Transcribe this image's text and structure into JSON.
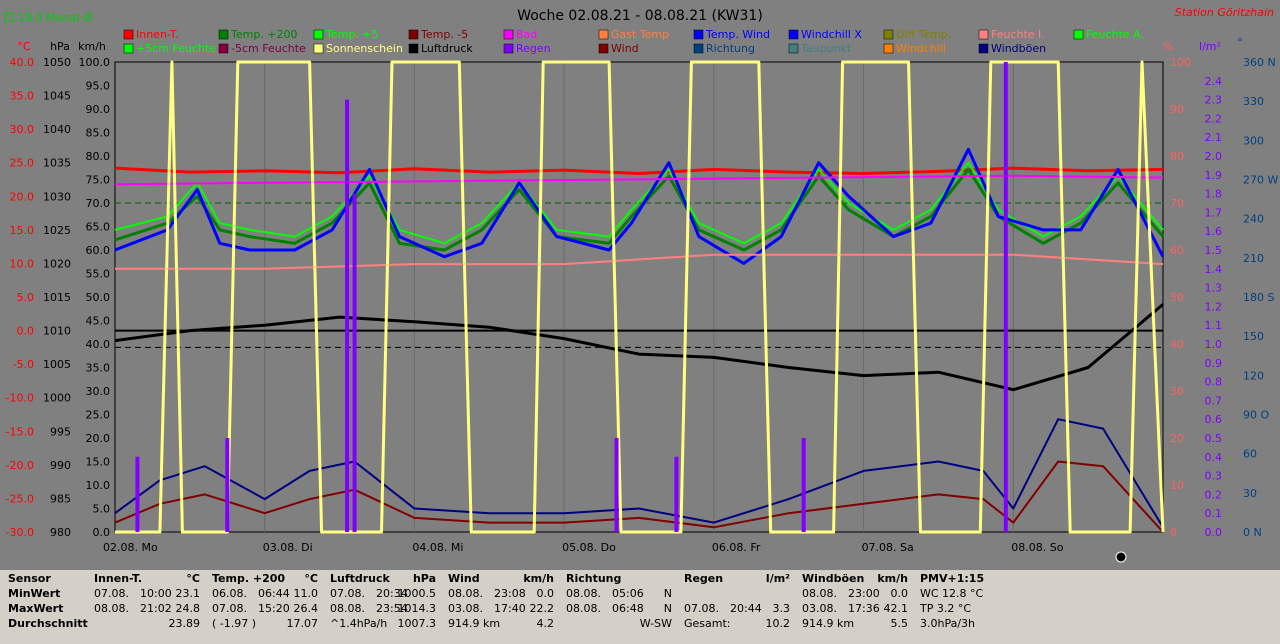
{
  "header": {
    "title": "Woche 02.08.21 - 08.08.21 (KW31)",
    "station": "Station Göritzhain",
    "month_avg": "19.0 Monat-Ø"
  },
  "axes": {
    "left_units": [
      "°C",
      "hPa",
      "km/h"
    ],
    "right_units": [
      "%",
      "l/m²",
      "°"
    ],
    "temp_ticks": [
      "40.0",
      "35.0",
      "30.0",
      "25.0",
      "20.0",
      "15.0",
      "10.0",
      "5.0",
      "0.0",
      "-5.0",
      "-10.0",
      "-15.0",
      "-20.0",
      "-25.0",
      "-30.0"
    ],
    "hpa_ticks": [
      "1050",
      "1045",
      "1040",
      "1035",
      "1030",
      "1025",
      "1020",
      "1015",
      "1010",
      "1005",
      "1000",
      "995",
      "990",
      "985",
      "980"
    ],
    "kmh_ticks": [
      "100.0",
      "95.0",
      "90.0",
      "85.0",
      "80.0",
      "75.0",
      "70.0",
      "65.0",
      "60.0",
      "55.0",
      "50.0",
      "45.0",
      "40.0",
      "35.0",
      "30.0",
      "25.0",
      "20.0",
      "15.0",
      "10.0",
      "5.0",
      "0.0"
    ],
    "pct_ticks": [
      "100",
      "90",
      "80",
      "70",
      "60",
      "50",
      "40",
      "30",
      "20",
      "10",
      "0"
    ],
    "rain_ticks": [
      "2.4",
      "2.3",
      "2.2",
      "2.1",
      "2.0",
      "1.9",
      "1.8",
      "1.7",
      "1.6",
      "1.5",
      "1.4",
      "1.3",
      "1.2",
      "1.1",
      "1.0",
      "0.9",
      "0.8",
      "0.7",
      "0.6",
      "0.5",
      "0.4",
      "0.3",
      "0.2",
      "0.1",
      "0.0"
    ],
    "dir_ticks": [
      "360 N",
      "330",
      "300",
      "270 W",
      "240",
      "210",
      "180 S",
      "150",
      "120",
      "90 O",
      "60",
      "30",
      "0 N"
    ],
    "days": [
      "02.08. Mo",
      "03.08. Di",
      "04.08. Mi",
      "05.08. Do",
      "06.08. Fr",
      "07.08. Sa",
      "08.08. So"
    ]
  },
  "legend": [
    {
      "label": "Innen-T.",
      "color": "#ff0000"
    },
    {
      "label": "Temp. +200",
      "color": "#008000"
    },
    {
      "label": "Temp. +5",
      "color": "#00ff00"
    },
    {
      "label": "Temp. -5",
      "color": "#800000"
    },
    {
      "label": "Bad",
      "color": "#ff00ff"
    },
    {
      "label": "Gast Temp",
      "color": "#ff8040"
    },
    {
      "label": "Temp. Wind",
      "color": "#0000ff"
    },
    {
      "label": "Windchill X",
      "color": "#0000ff"
    },
    {
      "label": "Diff Temp.",
      "color": "#808000"
    },
    {
      "label": "Feuchte I.",
      "color": "#ff8080"
    },
    {
      "label": "Feuchte A.",
      "color": "#00ff00"
    },
    {
      "label": "+5cm Feuchte",
      "color": "#00ff00"
    },
    {
      "label": "-5cm Feuchte",
      "color": "#800040"
    },
    {
      "label": "Sonnenschein",
      "color": "#ffff80"
    },
    {
      "label": "Luftdruck",
      "color": "#000000"
    },
    {
      "label": "Regen",
      "color": "#8000ff"
    },
    {
      "label": "Wind",
      "color": "#800000"
    },
    {
      "label": "Richtung",
      "color": "#004080"
    },
    {
      "label": "Taupunkt",
      "color": "#408080"
    },
    {
      "label": "Windchill",
      "color": "#ff8000"
    },
    {
      "label": "Windböen",
      "color": "#000080"
    }
  ],
  "chart_data": {
    "type": "line",
    "title": "Woche 02.08.21 - 08.08.21 (KW31)",
    "x_days": [
      "02.08. Mo",
      "03.08. Di",
      "04.08. Mi",
      "05.08. Do",
      "06.08. Fr",
      "07.08. Sa",
      "08.08. So"
    ],
    "temp_ylim": [
      -30,
      40
    ],
    "pressure_ylim": [
      980,
      1050
    ],
    "kmh_ylim": [
      0,
      100
    ],
    "pct_ylim": [
      0,
      100
    ],
    "rain_ylim": [
      0,
      2.5
    ],
    "dir_ylim": [
      0,
      360
    ],
    "series": [
      {
        "name": "Innen-T.",
        "color": "#ff0000",
        "width": 3,
        "x": [
          0,
          0.5,
          1,
          1.5,
          2,
          2.5,
          3,
          3.5,
          4,
          4.5,
          5,
          5.5,
          6,
          6.5,
          7
        ],
        "y": [
          24.2,
          23.6,
          23.8,
          23.5,
          24.1,
          23.6,
          23.9,
          23.4,
          24.0,
          23.6,
          23.4,
          23.7,
          24.2,
          23.8,
          24.0
        ]
      },
      {
        "name": "Temp. +200",
        "color": "#008000",
        "width": 3,
        "x": [
          0,
          0.35,
          0.55,
          0.7,
          0.9,
          1.2,
          1.45,
          1.7,
          1.9,
          2.2,
          2.45,
          2.7,
          2.95,
          3.3,
          3.45,
          3.7,
          3.9,
          4.2,
          4.45,
          4.7,
          4.9,
          5.2,
          5.45,
          5.7,
          5.9,
          6.2,
          6.45,
          6.7,
          7
        ],
        "y": [
          13.5,
          16,
          20,
          15,
          14,
          13,
          16,
          22,
          13,
          12,
          15,
          21,
          14,
          13,
          17,
          23,
          15,
          12,
          15,
          23,
          18,
          14,
          17,
          24,
          17,
          13,
          16,
          22,
          14
        ]
      },
      {
        "name": "Temp. +5",
        "color": "#00ff00",
        "width": 2,
        "x": [
          0,
          0.35,
          0.55,
          0.7,
          0.9,
          1.2,
          1.45,
          1.7,
          1.9,
          2.2,
          2.45,
          2.7,
          2.95,
          3.3,
          3.45,
          3.7,
          3.9,
          4.2,
          4.45,
          4.7,
          4.9,
          5.2,
          5.45,
          5.7,
          5.9,
          6.2,
          6.45,
          6.7,
          7
        ],
        "y": [
          15,
          17,
          22,
          16,
          15,
          14,
          17,
          23,
          15,
          13,
          16,
          22,
          15,
          14,
          18,
          24,
          16,
          13,
          16,
          24,
          19,
          15,
          18,
          25,
          18,
          14,
          17,
          23,
          15
        ]
      },
      {
        "name": "Temp. Wind",
        "color": "#0000ff",
        "width": 3,
        "x": [
          0,
          0.35,
          0.55,
          0.7,
          0.9,
          1.2,
          1.45,
          1.7,
          1.9,
          2.2,
          2.45,
          2.7,
          2.95,
          3.3,
          3.45,
          3.7,
          3.9,
          4.2,
          4.45,
          4.7,
          4.9,
          5.2,
          5.45,
          5.7,
          5.9,
          6.2,
          6.45,
          6.7,
          7
        ],
        "y": [
          12,
          15,
          21,
          13,
          12,
          12,
          15,
          24,
          14,
          11,
          13,
          22,
          14,
          12,
          16,
          25,
          14,
          10,
          14,
          25,
          20,
          14,
          16,
          27,
          17,
          15,
          15,
          24,
          11
        ]
      },
      {
        "name": "Luftdruck",
        "color": "#000000",
        "width": 3,
        "x": [
          0,
          0.5,
          1,
          1.5,
          2,
          2.5,
          3,
          3.5,
          4,
          4.5,
          5,
          5.5,
          6,
          6.5,
          7
        ],
        "y": [
          1008.5,
          1010,
          1010.8,
          1012,
          1011.3,
          1010.5,
          1008.8,
          1006.5,
          1006,
          1004.5,
          1003.3,
          1003.8,
          1001.2,
          1004.5,
          1013.9
        ]
      },
      {
        "name": "Feuchte I.",
        "color": "#ff8080",
        "width": 2,
        "x": [
          0,
          1,
          2,
          3,
          4,
          5,
          6,
          7
        ],
        "y": [
          56,
          56,
          57,
          57,
          59,
          59,
          59,
          57
        ]
      },
      {
        "name": "Bad",
        "color": "#ff00ff",
        "width": 2,
        "x": [
          0,
          1,
          2,
          3,
          4,
          5,
          6,
          7
        ],
        "y": [
          74,
          74.3,
          74.6,
          74.9,
          75.2,
          75.5,
          75.8,
          75.4
        ]
      },
      {
        "name": "Wind",
        "color": "#800000",
        "width": 2,
        "x": [
          0,
          0.3,
          0.6,
          1,
          1.3,
          1.6,
          2,
          2.5,
          3,
          3.5,
          4,
          4.5,
          5,
          5.5,
          5.8,
          6,
          6.3,
          6.6,
          7
        ],
        "y": [
          2,
          6,
          8,
          4,
          7,
          9,
          3,
          2,
          2,
          3,
          1,
          4,
          6,
          8,
          7,
          2,
          15,
          14,
          0
        ]
      },
      {
        "name": "Windböen",
        "color": "#000080",
        "width": 2,
        "x": [
          0,
          0.3,
          0.6,
          1,
          1.3,
          1.6,
          2,
          2.5,
          3,
          3.5,
          4,
          4.5,
          5,
          5.5,
          5.8,
          6,
          6.3,
          6.6,
          7
        ],
        "y": [
          4,
          11,
          14,
          7,
          13,
          15,
          5,
          4,
          4,
          5,
          2,
          7,
          13,
          15,
          13,
          5,
          24,
          22,
          1
        ]
      },
      {
        "name": "Sonnenschein",
        "color": "#ffff80",
        "width": 3,
        "x": [
          0,
          0.3,
          0.38,
          0.45,
          0.75,
          0.82,
          1.3,
          1.38,
          1.78,
          1.85,
          2.3,
          2.38,
          2.8,
          2.86,
          3.3,
          3.38,
          3.78,
          3.85,
          4.3,
          4.38,
          4.8,
          4.86,
          5.3,
          5.38,
          5.78,
          5.85,
          6.3,
          6.38,
          6.78,
          6.86,
          7
        ],
        "y": [
          0,
          0,
          100,
          0,
          0,
          100,
          100,
          0,
          0,
          100,
          100,
          0,
          0,
          100,
          100,
          0,
          0,
          100,
          100,
          0,
          0,
          100,
          100,
          0,
          0,
          100,
          100,
          0,
          0,
          100,
          0
        ]
      },
      {
        "name": "Regen",
        "color": "#8000ff",
        "width": 4,
        "x": [
          0.15,
          0.75,
          1.55,
          1.6,
          3.35,
          3.75,
          4.6,
          5.95
        ],
        "y": [
          0.4,
          0.5,
          2.3,
          1.8,
          0.5,
          0.4,
          0.5,
          2.5
        ]
      }
    ]
  },
  "stats": {
    "cols": [
      {
        "title": "Sensor",
        "unit": "",
        "rows": [
          [
            "MinWert",
            "",
            ""
          ],
          [
            "MaxWert",
            "",
            ""
          ],
          [
            "Durchschnitt",
            "",
            ""
          ]
        ]
      },
      {
        "title": "Innen-T.",
        "unit": "°C",
        "rows": [
          [
            "07.08.",
            "10:00",
            "23.1"
          ],
          [
            "08.08.",
            "21:02",
            "24.8"
          ],
          [
            "",
            "",
            "23.89"
          ]
        ]
      },
      {
        "title": "Temp. +200",
        "unit": "°C",
        "rows": [
          [
            "06.08.",
            "06:44",
            "11.0"
          ],
          [
            "07.08.",
            "15:20",
            "26.4"
          ],
          [
            "( -1.97 )",
            "",
            "17.07"
          ]
        ]
      },
      {
        "title": "Luftdruck",
        "unit": "hPa",
        "rows": [
          [
            "07.08.",
            "20:34",
            "1000.5"
          ],
          [
            "08.08.",
            "23:54",
            "1014.3"
          ],
          [
            "^1.4hPa/h",
            "",
            "1007.3"
          ]
        ]
      },
      {
        "title": "Wind",
        "unit": "km/h",
        "rows": [
          [
            "08.08.",
            "23:08",
            "0.0"
          ],
          [
            "03.08.",
            "17:40",
            "22.2"
          ],
          [
            "914.9 km",
            "",
            "4.2"
          ]
        ]
      },
      {
        "title": "Richtung",
        "unit": "",
        "rows": [
          [
            "08.08.",
            "05:06",
            "N"
          ],
          [
            "08.08.",
            "06:48",
            "N"
          ],
          [
            "",
            "",
            "W-SW"
          ]
        ]
      },
      {
        "title": "Regen",
        "unit": "l/m²",
        "rows": [
          [
            "",
            "",
            ""
          ],
          [
            "07.08.",
            "20:44",
            "3.3"
          ],
          [
            "Gesamt:",
            "",
            "10.2"
          ]
        ]
      },
      {
        "title": "Windböen",
        "unit": "km/h",
        "rows": [
          [
            "08.08.",
            "23:00",
            "0.0"
          ],
          [
            "03.08.",
            "17:36",
            "42.1"
          ],
          [
            "914.9 km",
            "",
            "5.5"
          ]
        ]
      },
      {
        "title": "PMV+1:15",
        "unit": "",
        "rows": [
          [
            "WC 12.8 °C",
            "",
            ""
          ],
          [
            "TP 3.2 °C",
            "",
            ""
          ],
          [
            "3.0hPa/3h",
            "",
            ""
          ]
        ]
      }
    ]
  }
}
